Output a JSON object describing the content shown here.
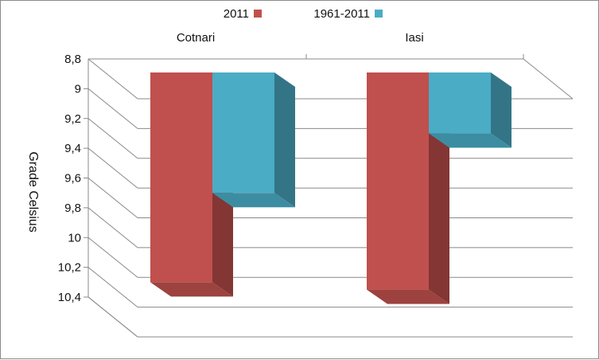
{
  "chart_data": {
    "type": "bar",
    "mirrored": true,
    "title": "",
    "ylabel": "Grade Celsius",
    "xlabel": "",
    "categories": [
      "Iasi",
      "Cotnari"
    ],
    "series": [
      {
        "name": "2011",
        "values": [
          10.3,
          10.35
        ],
        "color": "#c0504d"
      },
      {
        "name": "1961-2011",
        "values": [
          9.7,
          9.3
        ],
        "color": "#4bacc6"
      }
    ],
    "ylim": [
      8.8,
      10.4
    ],
    "yticks": [
      "8,8",
      "9",
      "9,2",
      "9,4",
      "9,6",
      "9,8",
      "10",
      "10,2",
      "10,4"
    ],
    "legend_position": "top",
    "grid": true
  }
}
